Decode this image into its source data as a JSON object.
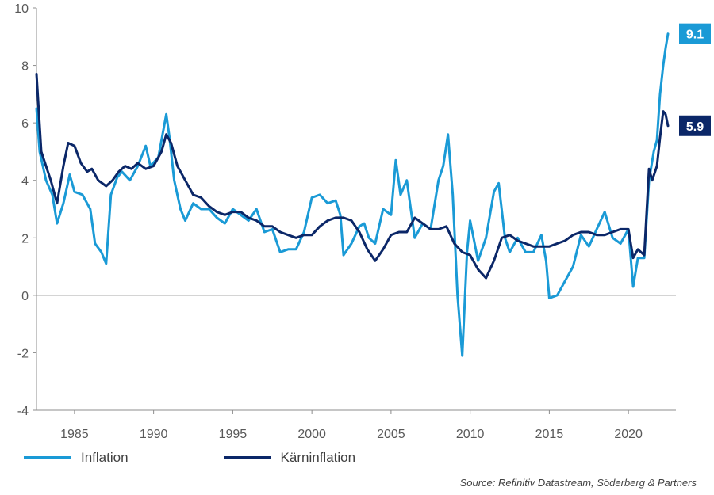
{
  "chart_data": {
    "type": "line",
    "x_unit": "year",
    "xlim": [
      1982.6,
      2023.0
    ],
    "ylim": [
      -4,
      10
    ],
    "yticks": [
      -4,
      -2,
      0,
      2,
      4,
      6,
      8,
      10
    ],
    "xticks": [
      1985,
      1990,
      1995,
      2000,
      2005,
      2010,
      2015,
      2020
    ],
    "grid": false,
    "zero_line": true,
    "legend_position": "bottom-left",
    "source": "Source: Refinitiv Datastream, Söderberg & Partners",
    "series": [
      {
        "name": "Inflation",
        "color": "#1a9ad6",
        "end_label": "9.1",
        "points": [
          [
            1982.6,
            6.5
          ],
          [
            1982.8,
            5.0
          ],
          [
            1983.2,
            4.0
          ],
          [
            1983.6,
            3.5
          ],
          [
            1983.9,
            2.5
          ],
          [
            1984.3,
            3.2
          ],
          [
            1984.7,
            4.2
          ],
          [
            1985.0,
            3.6
          ],
          [
            1985.5,
            3.5
          ],
          [
            1986.0,
            3.0
          ],
          [
            1986.3,
            1.8
          ],
          [
            1986.7,
            1.5
          ],
          [
            1987.0,
            1.1
          ],
          [
            1987.3,
            3.5
          ],
          [
            1987.7,
            4.1
          ],
          [
            1988.0,
            4.3
          ],
          [
            1988.5,
            4.0
          ],
          [
            1989.0,
            4.5
          ],
          [
            1989.5,
            5.2
          ],
          [
            1989.8,
            4.5
          ],
          [
            1990.3,
            4.8
          ],
          [
            1990.8,
            6.3
          ],
          [
            1991.0,
            5.5
          ],
          [
            1991.3,
            4.0
          ],
          [
            1991.7,
            3.0
          ],
          [
            1992.0,
            2.6
          ],
          [
            1992.5,
            3.2
          ],
          [
            1993.0,
            3.0
          ],
          [
            1993.5,
            3.0
          ],
          [
            1994.0,
            2.7
          ],
          [
            1994.5,
            2.5
          ],
          [
            1995.0,
            3.0
          ],
          [
            1995.5,
            2.8
          ],
          [
            1996.0,
            2.6
          ],
          [
            1996.5,
            3.0
          ],
          [
            1997.0,
            2.2
          ],
          [
            1997.5,
            2.3
          ],
          [
            1998.0,
            1.5
          ],
          [
            1998.5,
            1.6
          ],
          [
            1999.0,
            1.6
          ],
          [
            1999.5,
            2.2
          ],
          [
            2000.0,
            3.4
          ],
          [
            2000.5,
            3.5
          ],
          [
            2001.0,
            3.2
          ],
          [
            2001.5,
            3.3
          ],
          [
            2001.8,
            2.8
          ],
          [
            2002.0,
            1.4
          ],
          [
            2002.5,
            1.8
          ],
          [
            2003.0,
            2.4
          ],
          [
            2003.3,
            2.5
          ],
          [
            2003.6,
            2.0
          ],
          [
            2004.0,
            1.8
          ],
          [
            2004.5,
            3.0
          ],
          [
            2005.0,
            2.8
          ],
          [
            2005.3,
            4.7
          ],
          [
            2005.6,
            3.5
          ],
          [
            2006.0,
            4.0
          ],
          [
            2006.5,
            2.0
          ],
          [
            2007.0,
            2.5
          ],
          [
            2007.5,
            2.3
          ],
          [
            2008.0,
            4.0
          ],
          [
            2008.3,
            4.5
          ],
          [
            2008.6,
            5.6
          ],
          [
            2008.9,
            3.5
          ],
          [
            2009.2,
            0.0
          ],
          [
            2009.5,
            -2.1
          ],
          [
            2009.8,
            1.5
          ],
          [
            2010.0,
            2.6
          ],
          [
            2010.5,
            1.2
          ],
          [
            2011.0,
            2.0
          ],
          [
            2011.5,
            3.6
          ],
          [
            2011.8,
            3.9
          ],
          [
            2012.2,
            2.0
          ],
          [
            2012.5,
            1.5
          ],
          [
            2013.0,
            2.0
          ],
          [
            2013.5,
            1.5
          ],
          [
            2014.0,
            1.5
          ],
          [
            2014.5,
            2.1
          ],
          [
            2014.8,
            1.2
          ],
          [
            2015.0,
            -0.1
          ],
          [
            2015.5,
            0.0
          ],
          [
            2016.0,
            0.5
          ],
          [
            2016.5,
            1.0
          ],
          [
            2017.0,
            2.1
          ],
          [
            2017.5,
            1.7
          ],
          [
            2018.0,
            2.3
          ],
          [
            2018.5,
            2.9
          ],
          [
            2019.0,
            2.0
          ],
          [
            2019.5,
            1.8
          ],
          [
            2020.0,
            2.3
          ],
          [
            2020.3,
            0.3
          ],
          [
            2020.6,
            1.3
          ],
          [
            2021.0,
            1.3
          ],
          [
            2021.3,
            4.0
          ],
          [
            2021.6,
            5.0
          ],
          [
            2021.8,
            5.4
          ],
          [
            2022.0,
            7.0
          ],
          [
            2022.2,
            8.0
          ],
          [
            2022.35,
            8.6
          ],
          [
            2022.5,
            9.1
          ]
        ]
      },
      {
        "name": "Kärninflation",
        "color": "#0b2768",
        "end_label": "5.9",
        "points": [
          [
            1982.6,
            7.7
          ],
          [
            1982.9,
            5.0
          ],
          [
            1983.2,
            4.5
          ],
          [
            1983.5,
            4.0
          ],
          [
            1983.9,
            3.2
          ],
          [
            1984.3,
            4.5
          ],
          [
            1984.6,
            5.3
          ],
          [
            1985.0,
            5.2
          ],
          [
            1985.4,
            4.6
          ],
          [
            1985.8,
            4.3
          ],
          [
            1986.1,
            4.4
          ],
          [
            1986.5,
            4.0
          ],
          [
            1987.0,
            3.8
          ],
          [
            1987.4,
            4.0
          ],
          [
            1987.8,
            4.3
          ],
          [
            1988.2,
            4.5
          ],
          [
            1988.6,
            4.4
          ],
          [
            1989.0,
            4.6
          ],
          [
            1989.5,
            4.4
          ],
          [
            1990.0,
            4.5
          ],
          [
            1990.5,
            5.0
          ],
          [
            1990.8,
            5.6
          ],
          [
            1991.1,
            5.3
          ],
          [
            1991.5,
            4.5
          ],
          [
            1992.0,
            4.0
          ],
          [
            1992.5,
            3.5
          ],
          [
            1993.0,
            3.4
          ],
          [
            1993.5,
            3.1
          ],
          [
            1994.0,
            2.9
          ],
          [
            1994.5,
            2.8
          ],
          [
            1995.0,
            2.9
          ],
          [
            1995.5,
            2.9
          ],
          [
            1996.0,
            2.7
          ],
          [
            1996.5,
            2.6
          ],
          [
            1997.0,
            2.4
          ],
          [
            1997.5,
            2.4
          ],
          [
            1998.0,
            2.2
          ],
          [
            1998.5,
            2.1
          ],
          [
            1999.0,
            2.0
          ],
          [
            1999.5,
            2.1
          ],
          [
            2000.0,
            2.1
          ],
          [
            2000.5,
            2.4
          ],
          [
            2001.0,
            2.6
          ],
          [
            2001.5,
            2.7
          ],
          [
            2002.0,
            2.7
          ],
          [
            2002.5,
            2.6
          ],
          [
            2003.0,
            2.2
          ],
          [
            2003.5,
            1.6
          ],
          [
            2004.0,
            1.2
          ],
          [
            2004.5,
            1.6
          ],
          [
            2005.0,
            2.1
          ],
          [
            2005.5,
            2.2
          ],
          [
            2006.0,
            2.2
          ],
          [
            2006.5,
            2.7
          ],
          [
            2007.0,
            2.5
          ],
          [
            2007.5,
            2.3
          ],
          [
            2008.0,
            2.3
          ],
          [
            2008.5,
            2.4
          ],
          [
            2009.0,
            1.8
          ],
          [
            2009.5,
            1.5
          ],
          [
            2010.0,
            1.4
          ],
          [
            2010.5,
            0.9
          ],
          [
            2011.0,
            0.6
          ],
          [
            2011.5,
            1.2
          ],
          [
            2012.0,
            2.0
          ],
          [
            2012.5,
            2.1
          ],
          [
            2013.0,
            1.9
          ],
          [
            2013.5,
            1.8
          ],
          [
            2014.0,
            1.7
          ],
          [
            2014.5,
            1.7
          ],
          [
            2015.0,
            1.7
          ],
          [
            2015.5,
            1.8
          ],
          [
            2016.0,
            1.9
          ],
          [
            2016.5,
            2.1
          ],
          [
            2017.0,
            2.2
          ],
          [
            2017.5,
            2.2
          ],
          [
            2018.0,
            2.1
          ],
          [
            2018.5,
            2.1
          ],
          [
            2019.0,
            2.2
          ],
          [
            2019.5,
            2.3
          ],
          [
            2020.0,
            2.3
          ],
          [
            2020.3,
            1.3
          ],
          [
            2020.6,
            1.6
          ],
          [
            2021.0,
            1.4
          ],
          [
            2021.3,
            4.4
          ],
          [
            2021.5,
            4.0
          ],
          [
            2021.8,
            4.5
          ],
          [
            2022.0,
            5.5
          ],
          [
            2022.2,
            6.4
          ],
          [
            2022.35,
            6.3
          ],
          [
            2022.5,
            5.9
          ]
        ]
      }
    ]
  }
}
